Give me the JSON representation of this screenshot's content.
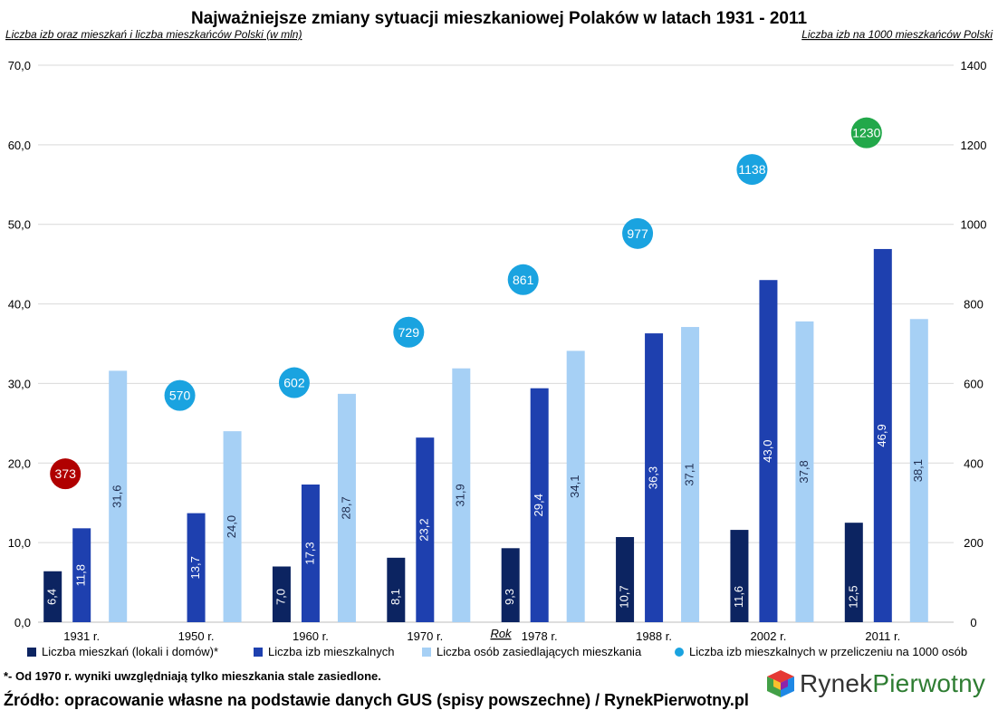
{
  "chart_data": {
    "type": "bar",
    "title": "Najważniejsze zmiany sytuacji mieszkaniowej Polaków w latach 1931 - 2011",
    "ylabel_left": "Liczba izb oraz mieszkań i liczba mieszkańców Polski (w mln)",
    "ylabel_right": "Liczba izb na 1000 mieszkańców Polski",
    "xlabel": "Rok",
    "ylim_left": [
      0,
      70
    ],
    "ylim_right": [
      0,
      1400
    ],
    "y_ticks_left": [
      "0,0",
      "10,0",
      "20,0",
      "30,0",
      "40,0",
      "50,0",
      "60,0",
      "70,0"
    ],
    "y_ticks_right": [
      "0",
      "200",
      "400",
      "600",
      "800",
      "1000",
      "1200",
      "1400"
    ],
    "categories": [
      "1931 r.",
      "1950 r.",
      "1960 r.",
      "1970 r.",
      "1978 r.",
      "1988 r.",
      "2002 r.",
      "2011 r."
    ],
    "grid": true,
    "legend_position": "bottom",
    "series": [
      {
        "name": "Liczba mieszkań (lokali i domów)*",
        "axis": "left",
        "color": "#0c2461",
        "values": [
          6.4,
          null,
          7.0,
          8.1,
          9.3,
          10.7,
          11.6,
          12.5
        ],
        "labels": [
          "6,4",
          "",
          "7,0",
          "8,1",
          "9,3",
          "10,7",
          "11,6",
          "12,5"
        ]
      },
      {
        "name": "Liczba izb mieszkalnych",
        "axis": "left",
        "color": "#1e40af",
        "values": [
          11.8,
          13.7,
          17.3,
          23.2,
          29.4,
          36.3,
          43.0,
          46.9
        ],
        "labels": [
          "11,8",
          "13,7",
          "17,3",
          "23,2",
          "29,4",
          "36,3",
          "43,0",
          "46,9"
        ]
      },
      {
        "name": "Liczba osób zasiedlających mieszkania",
        "axis": "left",
        "color": "#a6d0f5",
        "values": [
          31.6,
          24.0,
          28.7,
          31.9,
          34.1,
          37.1,
          37.8,
          38.1
        ],
        "labels": [
          "31,6",
          "24,0",
          "28,7",
          "31,9",
          "34,1",
          "37,1",
          "37,8",
          "38,1"
        ]
      },
      {
        "name": "Liczba izb mieszkalnych w przeliczeniu na 1000 osób",
        "axis": "right",
        "type": "scatter",
        "color": "#1aa3e0",
        "values": [
          373,
          570,
          602,
          729,
          861,
          977,
          1138,
          1230
        ],
        "labels": [
          "373",
          "570",
          "602",
          "729",
          "861",
          "977",
          "1138",
          "1230"
        ],
        "point_colors": [
          "#b00000",
          "#1aa3e0",
          "#1aa3e0",
          "#1aa3e0",
          "#1aa3e0",
          "#1aa3e0",
          "#1aa3e0",
          "#22a84a"
        ]
      }
    ]
  },
  "footnote": "*- Od 1970 r. wyniki uwzględniają tylko mieszkania stale zasiedlone.",
  "source": "Źródło: opracowanie własne na podstawie danych GUS (spisy powszechne) / RynekPierwotny.pl",
  "logo": {
    "part1": "Rynek",
    "part2": "Pierwotny"
  }
}
